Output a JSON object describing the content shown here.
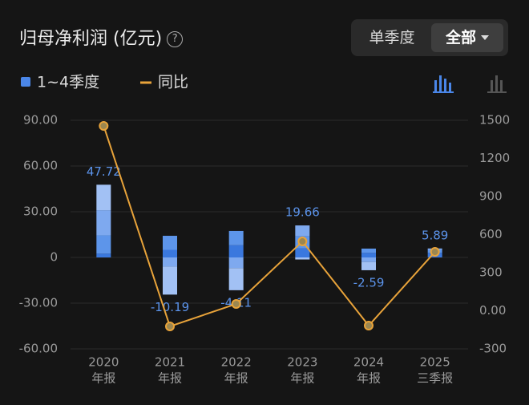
{
  "header": {
    "title": "归母净利润 (亿元)",
    "help": "?",
    "toggle": [
      "单季度",
      "全部"
    ]
  },
  "chart_data": {
    "type": "bar",
    "bar_legend": "1~4季度",
    "bar_legend_color": "#4a86e8",
    "categories": [
      "2020",
      "2021",
      "2022",
      "2023",
      "2024",
      "2025"
    ],
    "periods": [
      "年报",
      "年报",
      "年报",
      "年报",
      "年报",
      "三季报"
    ],
    "series": [
      {
        "color": "#3a78de",
        "values": [
          2.5,
          5.0,
          8.0,
          6.0,
          3.0,
          3.0
        ]
      },
      {
        "color": "#5d95ea",
        "values": [
          12.0,
          9.2,
          9.4,
          8.0,
          2.8,
          2.0
        ]
      },
      {
        "color": "#7ea9ef",
        "values": [
          16.5,
          -6.0,
          -7.0,
          7.0,
          -3.0,
          0.89
        ]
      },
      {
        "color": "#a2c1f4",
        "values": [
          16.72,
          -18.39,
          -14.51,
          -1.34,
          -5.39,
          null
        ]
      }
    ],
    "totals": [
      47.72,
      -10.19,
      -4.11,
      19.66,
      -2.59,
      5.89
    ],
    "totals_color": "#5b93ea",
    "line": {
      "name": "同比",
      "color": "#e8a33a",
      "axis": "y2",
      "values": [
        1456,
        -123,
        54,
        546,
        -117,
        464
      ]
    },
    "ylim": [
      -60,
      90
    ],
    "yticks": [
      {
        "value": 90,
        "label": "90.00"
      },
      {
        "value": 60,
        "label": "60.00"
      },
      {
        "value": 30,
        "label": "30.00"
      },
      0,
      {
        "value": -30,
        "label": "-30.00"
      },
      {
        "value": -60,
        "label": "-60.00"
      }
    ],
    "y2lim": [
      -300,
      1500
    ],
    "y2ticks": [
      1500,
      1200,
      900,
      600,
      300,
      {
        "value": 0,
        "label": "0.00"
      },
      -300
    ],
    "grid": true
  }
}
